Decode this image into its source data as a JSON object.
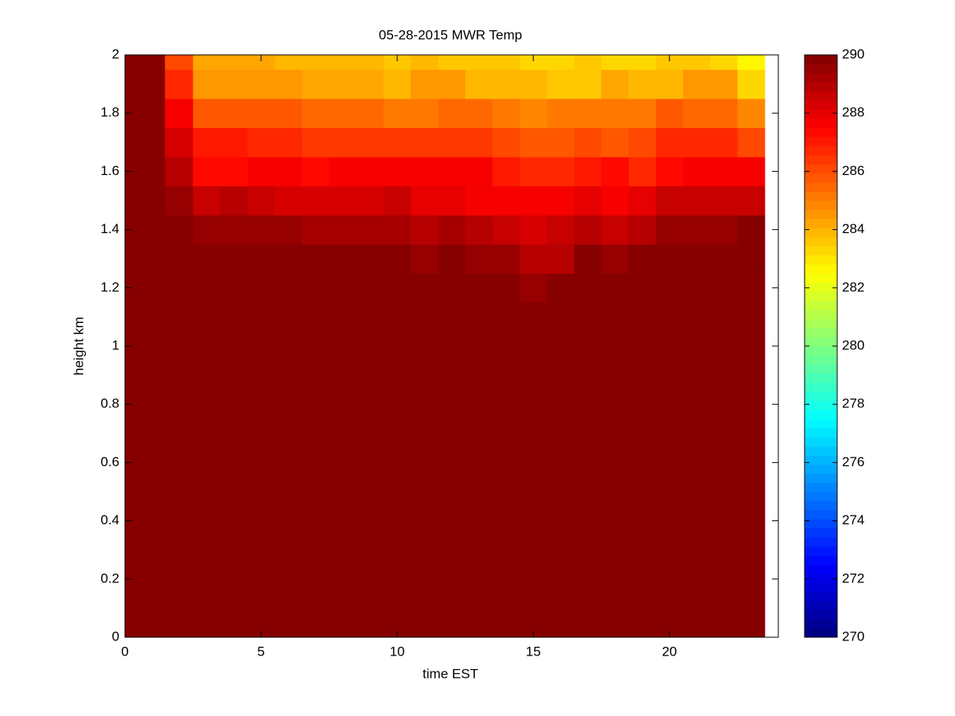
{
  "chart_data": {
    "type": "heatmap",
    "title": "05-28-2015 MWR Temp",
    "x_label": "time EST",
    "y_label": "height km",
    "colormap": "jet",
    "xlim": [
      0,
      24
    ],
    "xticks": [
      0,
      5,
      10,
      15,
      20
    ],
    "ylim": [
      0,
      2
    ],
    "yticks": [
      0,
      0.2,
      0.4,
      0.6,
      0.8,
      1,
      1.2,
      1.4,
      1.6,
      1.8,
      2
    ],
    "clim": [
      270,
      290
    ],
    "cticks": [
      270,
      272,
      274,
      276,
      278,
      280,
      282,
      284,
      286,
      288,
      290
    ],
    "x_edges": [
      0,
      1.47,
      2.5,
      3.5,
      4.5,
      5.5,
      6.5,
      7.5,
      8.5,
      9.5,
      10.5,
      11.5,
      12.5,
      13.5,
      14.5,
      15.5,
      16.5,
      17.5,
      18.5,
      19.5,
      20.5,
      21.5,
      22.5,
      23.5
    ],
    "y_edges": [
      0,
      1.15,
      1.25,
      1.35,
      1.45,
      1.55,
      1.65,
      1.75,
      1.85,
      1.95,
      2
    ],
    "values": [
      [
        290,
        290,
        290,
        290,
        290,
        290,
        290,
        290,
        290,
        290,
        290,
        290,
        290,
        290,
        290,
        290,
        290,
        290,
        290,
        290,
        290,
        290,
        290
      ],
      [
        290,
        290,
        290,
        290,
        290,
        290,
        290,
        290,
        290,
        290,
        290,
        290,
        290,
        290,
        289.6,
        290,
        290,
        290,
        290,
        290,
        290,
        290,
        290
      ],
      [
        290,
        290,
        290,
        290,
        290,
        290,
        290,
        290,
        290,
        290,
        289.6,
        290,
        289.5,
        289.5,
        288.9,
        288.9,
        289.8,
        289.4,
        289.7,
        290,
        290,
        290,
        290
      ],
      [
        290,
        289.9,
        289.5,
        289.5,
        289.4,
        289.4,
        289.3,
        289.3,
        289.3,
        289.3,
        289,
        289.3,
        289,
        288.7,
        288.2,
        288.5,
        289,
        288.6,
        288.9,
        289.4,
        289.4,
        289.6,
        289.8
      ],
      [
        290,
        289.5,
        288.6,
        289,
        288.7,
        288.4,
        288.4,
        288.4,
        288.3,
        288.5,
        288,
        288,
        287.8,
        287.6,
        287.5,
        287.5,
        288,
        287.7,
        288,
        288.6,
        288.5,
        288.5,
        288.5
      ],
      [
        290,
        289,
        287.3,
        287.3,
        287.6,
        287.6,
        287.4,
        287.8,
        287.6,
        287.6,
        287.6,
        287.6,
        287.6,
        287.1,
        286.8,
        286.6,
        286.9,
        287.2,
        286.8,
        287.3,
        287.7,
        287.7,
        287.7
      ],
      [
        290,
        288.3,
        287,
        287,
        286.8,
        286.8,
        286.5,
        286.5,
        286.3,
        286.3,
        286.3,
        286.3,
        286.3,
        286,
        285.7,
        285.7,
        286,
        285.9,
        286.1,
        286.7,
        286.7,
        286.7,
        286.2
      ],
      [
        290,
        287.5,
        285.8,
        285.8,
        285.8,
        285.8,
        285.5,
        285.5,
        285.5,
        285.2,
        285.2,
        285.6,
        285.4,
        285,
        284.8,
        285,
        285.3,
        285.2,
        285.3,
        285.7,
        285.4,
        285.4,
        284.8
      ],
      [
        290,
        286.8,
        284.6,
        284.6,
        284.6,
        284.5,
        284.3,
        284.3,
        284.3,
        284,
        284.4,
        284.4,
        284,
        284,
        284,
        283.7,
        283.7,
        284.2,
        284,
        284,
        284.6,
        284.4,
        283.3
      ],
      [
        290,
        286,
        284.2,
        284.2,
        284.2,
        283.9,
        283.9,
        283.9,
        283.9,
        283.5,
        284,
        283.6,
        283.6,
        283.6,
        283.3,
        283.3,
        283.6,
        283.3,
        283.3,
        283.6,
        283.6,
        283.2,
        282.6
      ]
    ]
  }
}
